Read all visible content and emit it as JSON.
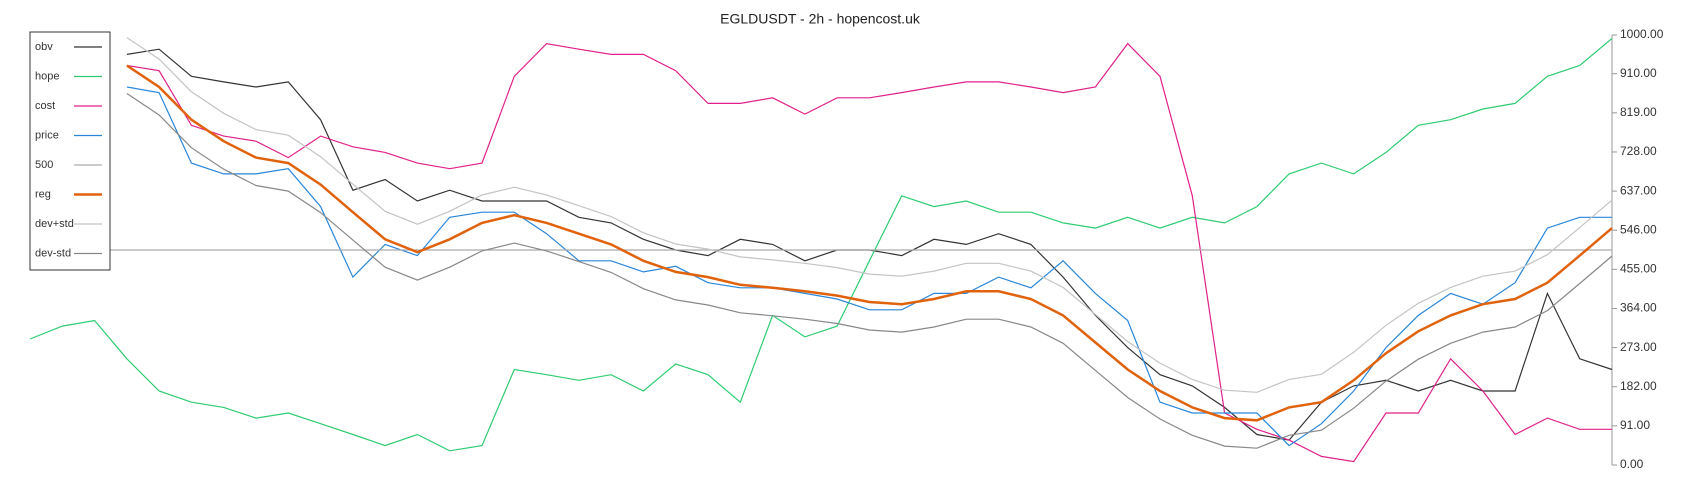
{
  "chart_data": {
    "type": "line",
    "title": "EGLDUSDT - 2h - hopencost.uk",
    "categories": [
      null,
      null,
      null,
      null,
      null,
      null,
      null,
      null,
      null,
      null,
      null,
      null,
      null,
      null,
      null,
      null,
      null,
      null,
      null,
      null,
      null,
      null,
      null,
      null,
      null,
      null,
      null,
      null,
      null,
      null,
      null,
      null,
      null,
      null,
      null,
      null,
      null,
      null,
      null,
      null,
      null,
      null,
      null,
      null,
      null,
      null,
      null,
      null,
      null,
      null
    ],
    "ylim": [
      0,
      1000
    ],
    "yticks": [
      {
        "value": 0,
        "label": "0.00"
      },
      {
        "value": 91,
        "label": "91.00"
      },
      {
        "value": 182,
        "label": "182.00"
      },
      {
        "value": 273,
        "label": "273.00"
      },
      {
        "value": 364,
        "label": "364.00"
      },
      {
        "value": 455,
        "label": "455.00"
      },
      {
        "value": 546,
        "label": "546.00"
      },
      {
        "value": 637,
        "label": "637.00"
      },
      {
        "value": 728,
        "label": "728.00"
      },
      {
        "value": 819,
        "label": "819.00"
      },
      {
        "value": 910,
        "label": "910.00"
      },
      {
        "value": 1000,
        "label": "1000.00"
      }
    ],
    "legend": "upper left",
    "series": [
      {
        "name": "obv",
        "color": "#333333",
        "values": [
          null,
          null,
          null,
          955,
          967,
          904,
          891,
          879,
          891,
          803,
          639,
          664,
          614,
          639,
          614,
          614,
          614,
          576,
          563,
          525,
          500,
          487,
          525,
          513,
          475,
          500,
          500,
          487,
          525,
          513,
          538,
          513,
          437,
          348,
          273,
          210,
          184,
          134,
          71,
          58,
          146,
          184,
          197,
          172,
          197,
          172,
          172,
          399,
          247,
          222
        ]
      },
      {
        "name": "hope",
        "color": "#2ecc71",
        "values": [
          293,
          323,
          336,
          247,
          172,
          146,
          134,
          109,
          121,
          96,
          71,
          45,
          71,
          33,
          45,
          222,
          210,
          197,
          210,
          172,
          235,
          210,
          146,
          348,
          298,
          323,
          475,
          626,
          601,
          614,
          588,
          588,
          563,
          551,
          576,
          551,
          576,
          563,
          601,
          677,
          702,
          677,
          727,
          790,
          803,
          828,
          841,
          904,
          929,
          992
        ]
      },
      {
        "name": "cost",
        "color": "#e0218a",
        "values": [
          null,
          null,
          null,
          929,
          917,
          790,
          765,
          753,
          715,
          765,
          740,
          727,
          702,
          689,
          702,
          904,
          980,
          967,
          955,
          955,
          917,
          841,
          841,
          854,
          816,
          854,
          854,
          866,
          879,
          891,
          891,
          879,
          866,
          879,
          980,
          904,
          626,
          121,
          83,
          58,
          20,
          8,
          121,
          121,
          247,
          172,
          71,
          109,
          83,
          83
        ]
      },
      {
        "name": "price",
        "color": "#2a86d9",
        "values": [
          null,
          null,
          null,
          879,
          866,
          702,
          677,
          677,
          689,
          601,
          437,
          513,
          487,
          576,
          588,
          588,
          538,
          475,
          475,
          449,
          462,
          424,
          412,
          412,
          399,
          386,
          361,
          361,
          399,
          399,
          437,
          412,
          475,
          399,
          336,
          146,
          121,
          121,
          121,
          45,
          96,
          172,
          273,
          348,
          399,
          374,
          424,
          551,
          576,
          576
        ]
      },
      {
        "name": "500",
        "color": "#aaaaaa",
        "values": [
          500,
          500,
          500,
          500,
          500,
          500,
          500,
          500,
          500,
          500,
          500,
          500,
          500,
          500,
          500,
          500,
          500,
          500,
          500,
          500,
          500,
          500,
          500,
          500,
          500,
          500,
          500,
          500,
          500,
          500,
          500,
          500,
          500,
          500,
          500,
          500,
          500,
          500,
          500,
          500,
          500,
          500,
          500,
          500,
          500,
          500,
          500,
          500,
          500,
          500
        ]
      },
      {
        "name": "reg",
        "color": "#e0620d",
        "values": [
          null,
          null,
          null,
          929,
          879,
          803,
          753,
          715,
          702,
          652,
          588,
          525,
          495,
          525,
          563,
          581,
          563,
          538,
          513,
          475,
          449,
          437,
          419,
          412,
          404,
          394,
          379,
          374,
          386,
          404,
          404,
          386,
          348,
          285,
          222,
          172,
          134,
          109,
          104,
          134,
          146,
          197,
          260,
          311,
          348,
          374,
          386,
          424,
          487,
          551
        ]
      },
      {
        "name": "dev+std",
        "color": "#c4c4c4",
        "values": [
          null,
          null,
          null,
          994,
          944,
          868,
          818,
          780,
          767,
          717,
          653,
          590,
          560,
          590,
          628,
          646,
          628,
          603,
          578,
          540,
          514,
          502,
          484,
          477,
          469,
          459,
          444,
          439,
          451,
          469,
          469,
          451,
          413,
          350,
          287,
          237,
          199,
          174,
          169,
          199,
          211,
          262,
          325,
          376,
          413,
          439,
          451,
          489,
          552,
          616
        ]
      },
      {
        "name": "dev-std",
        "color": "#888888",
        "values": [
          null,
          null,
          null,
          864,
          814,
          738,
          688,
          650,
          637,
          587,
          523,
          460,
          430,
          460,
          498,
          516,
          498,
          473,
          448,
          410,
          384,
          372,
          354,
          347,
          339,
          329,
          314,
          309,
          321,
          339,
          339,
          321,
          283,
          220,
          157,
          107,
          69,
          44,
          39,
          69,
          81,
          132,
          195,
          246,
          283,
          309,
          321,
          359,
          422,
          486
        ]
      }
    ]
  }
}
